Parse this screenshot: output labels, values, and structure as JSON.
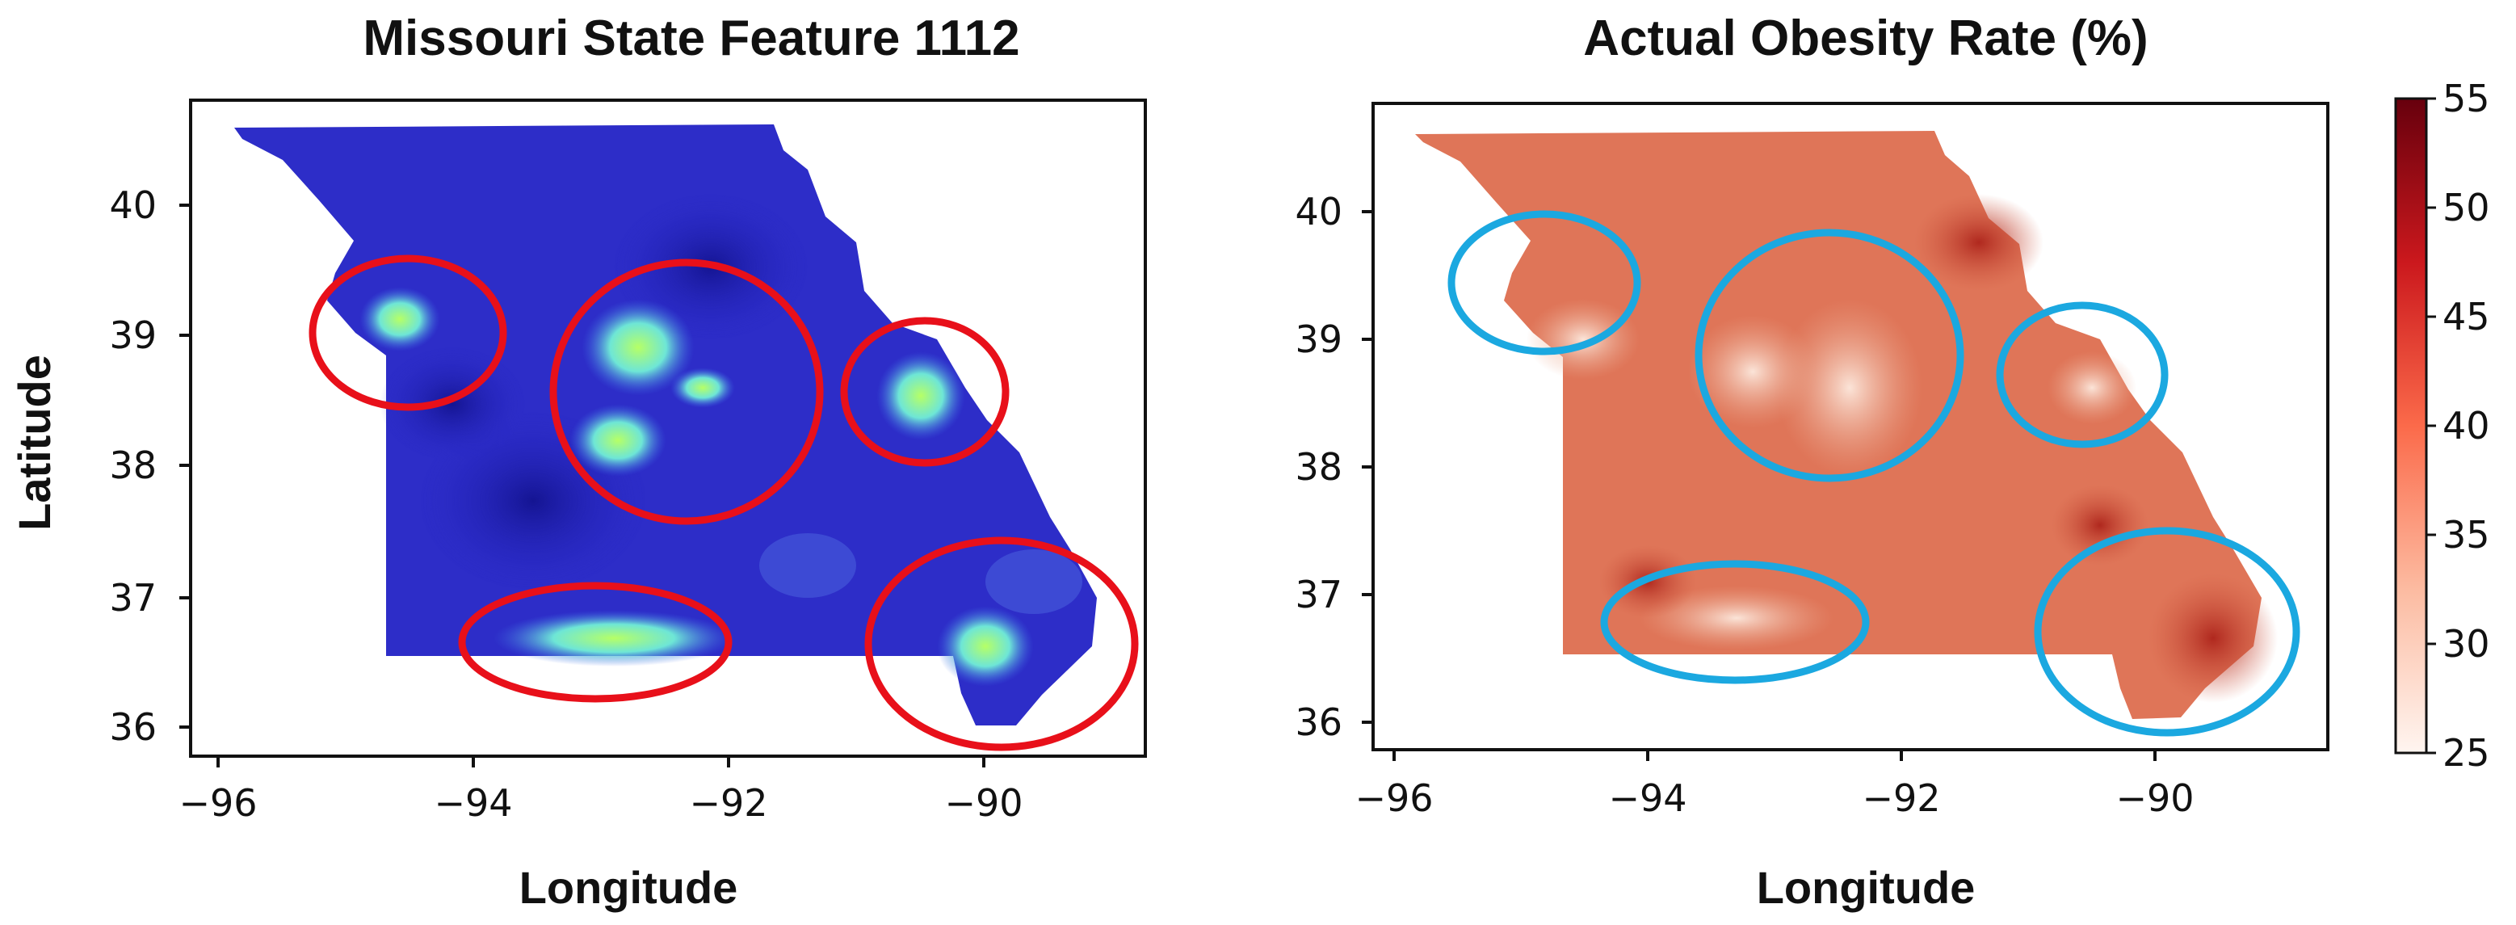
{
  "panels": [
    {
      "title": "Missouri State Feature 1112",
      "xlabel": "Longitude",
      "ylabel": "Latitude",
      "xticks": [
        "−96",
        "−94",
        "−92",
        "−90"
      ],
      "yticks": [
        "40",
        "39",
        "38",
        "37",
        "36"
      ],
      "map_colormap": "blue-to-green",
      "highlight_color": "#e8101a",
      "highlight_shape": "ellipse"
    },
    {
      "title": "Actual Obesity Rate (%)",
      "xlabel": "Longitude",
      "ylabel": "",
      "xticks": [
        "−96",
        "−94",
        "−92",
        "−90"
      ],
      "yticks": [
        "40",
        "39",
        "38",
        "37",
        "36"
      ],
      "map_colormap": "Reds",
      "highlight_color": "#1ba8e0",
      "highlight_shape": "ellipse"
    }
  ],
  "colorbar": {
    "ticks": [
      "55",
      "50",
      "45",
      "40",
      "35",
      "30",
      "25"
    ],
    "min": 25,
    "max": 55,
    "colors": [
      "#fff5f0",
      "#fcbba1",
      "#fb6a4a",
      "#cb181d",
      "#67000d"
    ]
  },
  "colors": {
    "feature_low": "#2626c8",
    "feature_high": "#9fff5a",
    "obesity_base": "#e0765a"
  }
}
